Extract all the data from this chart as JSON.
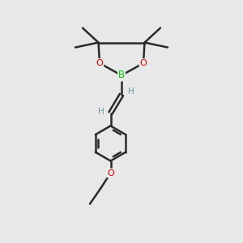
{
  "background_color": "#e8e8e8",
  "bond_color": "#2a2a2a",
  "bond_width": 1.8,
  "B_color": "#00cc00",
  "O_color": "#cc0000",
  "text_color": "#2a2a2a",
  "H_color": "#6a9a9a",
  "figsize": [
    3.0,
    3.0
  ],
  "dpi": 100,
  "xlim": [
    0,
    10
  ],
  "ylim": [
    0,
    10
  ],
  "Bx": 5.0,
  "By": 6.9,
  "O1x": 4.1,
  "O1y": 7.4,
  "O2x": 5.9,
  "O2y": 7.4,
  "C1x": 4.05,
  "C1y": 8.25,
  "C2x": 5.95,
  "C2y": 8.25,
  "VCx": 5.0,
  "VCy": 6.1,
  "VC2x": 4.55,
  "VC2y": 5.35,
  "Phcx": 4.55,
  "Phcy": 4.1,
  "ph_r": 0.72
}
